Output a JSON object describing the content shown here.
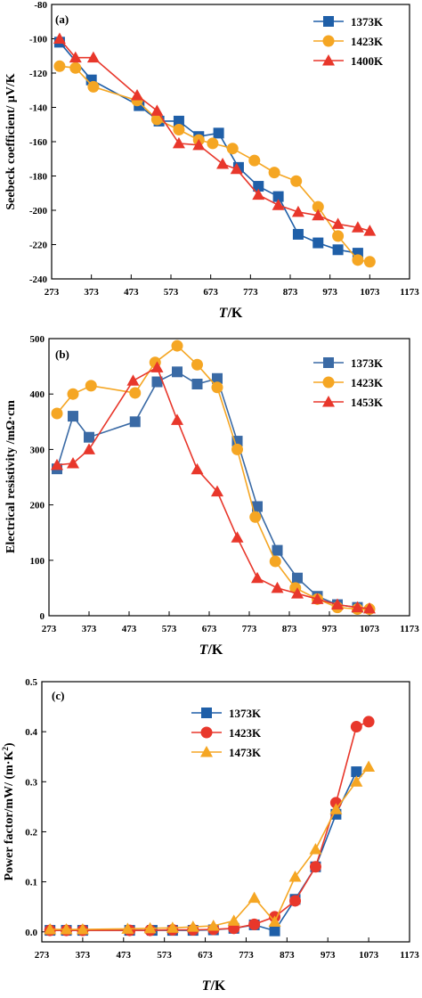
{
  "chart_data": [
    {
      "type": "line",
      "panel_label": "(a)",
      "ylabel": "Seebeck coefficient/ μV/K",
      "xlabel_italic": "T",
      "xlabel_unit": "/K",
      "xlim": [
        273,
        1173
      ],
      "ylim": [
        -240,
        -80
      ],
      "xticks": [
        "273",
        "373",
        "473",
        "573",
        "673",
        "773",
        "873",
        "973",
        "1073",
        "1173"
      ],
      "yticks": [
        "-80",
        "-100",
        "-120",
        "-140",
        "-160",
        "-180",
        "-200",
        "-220",
        "-240"
      ],
      "ytick_values": [
        -80,
        -100,
        -120,
        -140,
        -160,
        -180,
        -200,
        -220,
        -240
      ],
      "legend_position": "top-right",
      "series": [
        {
          "name": "1373K",
          "color": "#1f5fa8",
          "marker": "square",
          "x": [
            293,
            373,
            493,
            543,
            593,
            643,
            693,
            743,
            793,
            843,
            893,
            943,
            993,
            1043
          ],
          "y": [
            -102,
            -124,
            -139,
            -148,
            -148,
            -157,
            -155,
            -175,
            -186,
            -192,
            -214,
            -219,
            -223,
            -225
          ]
        },
        {
          "name": "1423K",
          "color": "#f5a623",
          "marker": "circle",
          "x": [
            293,
            333,
            378,
            488,
            538,
            593,
            643,
            678,
            728,
            783,
            833,
            888,
            943,
            993,
            1043,
            1073
          ],
          "y": [
            -116,
            -117,
            -128,
            -136,
            -147,
            -153,
            -159,
            -161,
            -164,
            -171,
            -178,
            -183,
            -198,
            -215,
            -229,
            -230
          ]
        },
        {
          "name": "1400K",
          "color": "#e8372b",
          "marker": "triangle",
          "x": [
            293,
            333,
            378,
            488,
            538,
            593,
            643,
            703,
            738,
            793,
            843,
            893,
            943,
            993,
            1043,
            1073
          ],
          "y": [
            -100,
            -111,
            -111,
            -133,
            -142,
            -161,
            -162,
            -173,
            -176,
            -191,
            -197,
            -201,
            -203,
            -208,
            -210,
            -212
          ]
        }
      ]
    },
    {
      "type": "line",
      "panel_label": "(b)",
      "ylabel": "Electrical resistivity /mΩ·cm",
      "xlabel_italic": "T",
      "xlabel_unit": "/K",
      "xlim": [
        273,
        1173
      ],
      "ylim": [
        0,
        500
      ],
      "xticks": [
        "273",
        "373",
        "473",
        "573",
        "673",
        "773",
        "873",
        "973",
        "1073",
        "1173"
      ],
      "yticks": [
        "0",
        "100",
        "200",
        "300",
        "400",
        "500"
      ],
      "ytick_values": [
        0,
        100,
        200,
        300,
        400,
        500
      ],
      "legend_position": "top-right",
      "series": [
        {
          "name": "1373K",
          "color": "#3a6aa5",
          "marker": "square",
          "x": [
            293,
            333,
            373,
            488,
            543,
            593,
            643,
            693,
            743,
            793,
            843,
            893,
            943,
            993,
            1043
          ],
          "y": [
            265,
            360,
            322,
            350,
            422,
            440,
            418,
            428,
            315,
            197,
            118,
            68,
            35,
            20,
            15
          ]
        },
        {
          "name": "1423K",
          "color": "#f5a623",
          "marker": "circle",
          "x": [
            293,
            333,
            378,
            488,
            538,
            593,
            643,
            693,
            743,
            788,
            838,
            888,
            943,
            993,
            1043,
            1073
          ],
          "y": [
            365,
            400,
            415,
            402,
            457,
            487,
            453,
            412,
            300,
            178,
            98,
            50,
            30,
            15,
            12,
            12
          ]
        },
        {
          "name": "1453K",
          "color": "#e8372b",
          "marker": "triangle",
          "x": [
            293,
            333,
            373,
            483,
            543,
            593,
            643,
            693,
            743,
            793,
            843,
            893,
            943,
            993,
            1043,
            1073
          ],
          "y": [
            272,
            275,
            300,
            424,
            448,
            353,
            264,
            224,
            141,
            68,
            50,
            40,
            30,
            20,
            15,
            13
          ]
        }
      ]
    },
    {
      "type": "line",
      "panel_label": "(c)",
      "ylabel_main": "Power factor/mW/ (m·K",
      "ylabel_sup": "2",
      "ylabel_end": ")",
      "xlabel_italic": "T",
      "xlabel_unit": "/K",
      "xlim": [
        273,
        1173
      ],
      "ylim": [
        -0.02,
        0.5
      ],
      "xticks": [
        "273",
        "373",
        "473",
        "573",
        "673",
        "773",
        "873",
        "973",
        "1073",
        "1173"
      ],
      "yticks": [
        "0.0",
        "0.1",
        "0.2",
        "0.3",
        "0.4",
        "0.5"
      ],
      "ytick_values": [
        0.0,
        0.1,
        0.2,
        0.3,
        0.4,
        0.5
      ],
      "legend_position": "top-left",
      "series": [
        {
          "name": "1373K",
          "color": "#1f5fa8",
          "marker": "square",
          "x": [
            293,
            333,
            373,
            488,
            543,
            593,
            643,
            693,
            743,
            793,
            843,
            893,
            943,
            993,
            1043
          ],
          "y": [
            0.003,
            0.003,
            0.003,
            0.003,
            0.003,
            0.003,
            0.003,
            0.004,
            0.007,
            0.014,
            0.002,
            0.065,
            0.13,
            0.235,
            0.32
          ]
        },
        {
          "name": "1423K",
          "color": "#e8372b",
          "marker": "circle",
          "x": [
            293,
            333,
            373,
            488,
            538,
            593,
            643,
            693,
            743,
            793,
            843,
            893,
            943,
            993,
            1043,
            1073
          ],
          "y": [
            0.003,
            0.003,
            0.003,
            0.003,
            0.003,
            0.004,
            0.004,
            0.005,
            0.007,
            0.015,
            0.03,
            0.062,
            0.13,
            0.258,
            0.41,
            0.42
          ]
        },
        {
          "name": "1473K",
          "color": "#f5a623",
          "marker": "triangle",
          "x": [
            293,
            333,
            373,
            483,
            538,
            593,
            643,
            693,
            743,
            793,
            843,
            893,
            943,
            993,
            1043,
            1073
          ],
          "y": [
            0.005,
            0.005,
            0.005,
            0.006,
            0.007,
            0.008,
            0.01,
            0.012,
            0.022,
            0.068,
            0.02,
            0.11,
            0.165,
            0.245,
            0.3,
            0.33
          ]
        }
      ]
    }
  ]
}
